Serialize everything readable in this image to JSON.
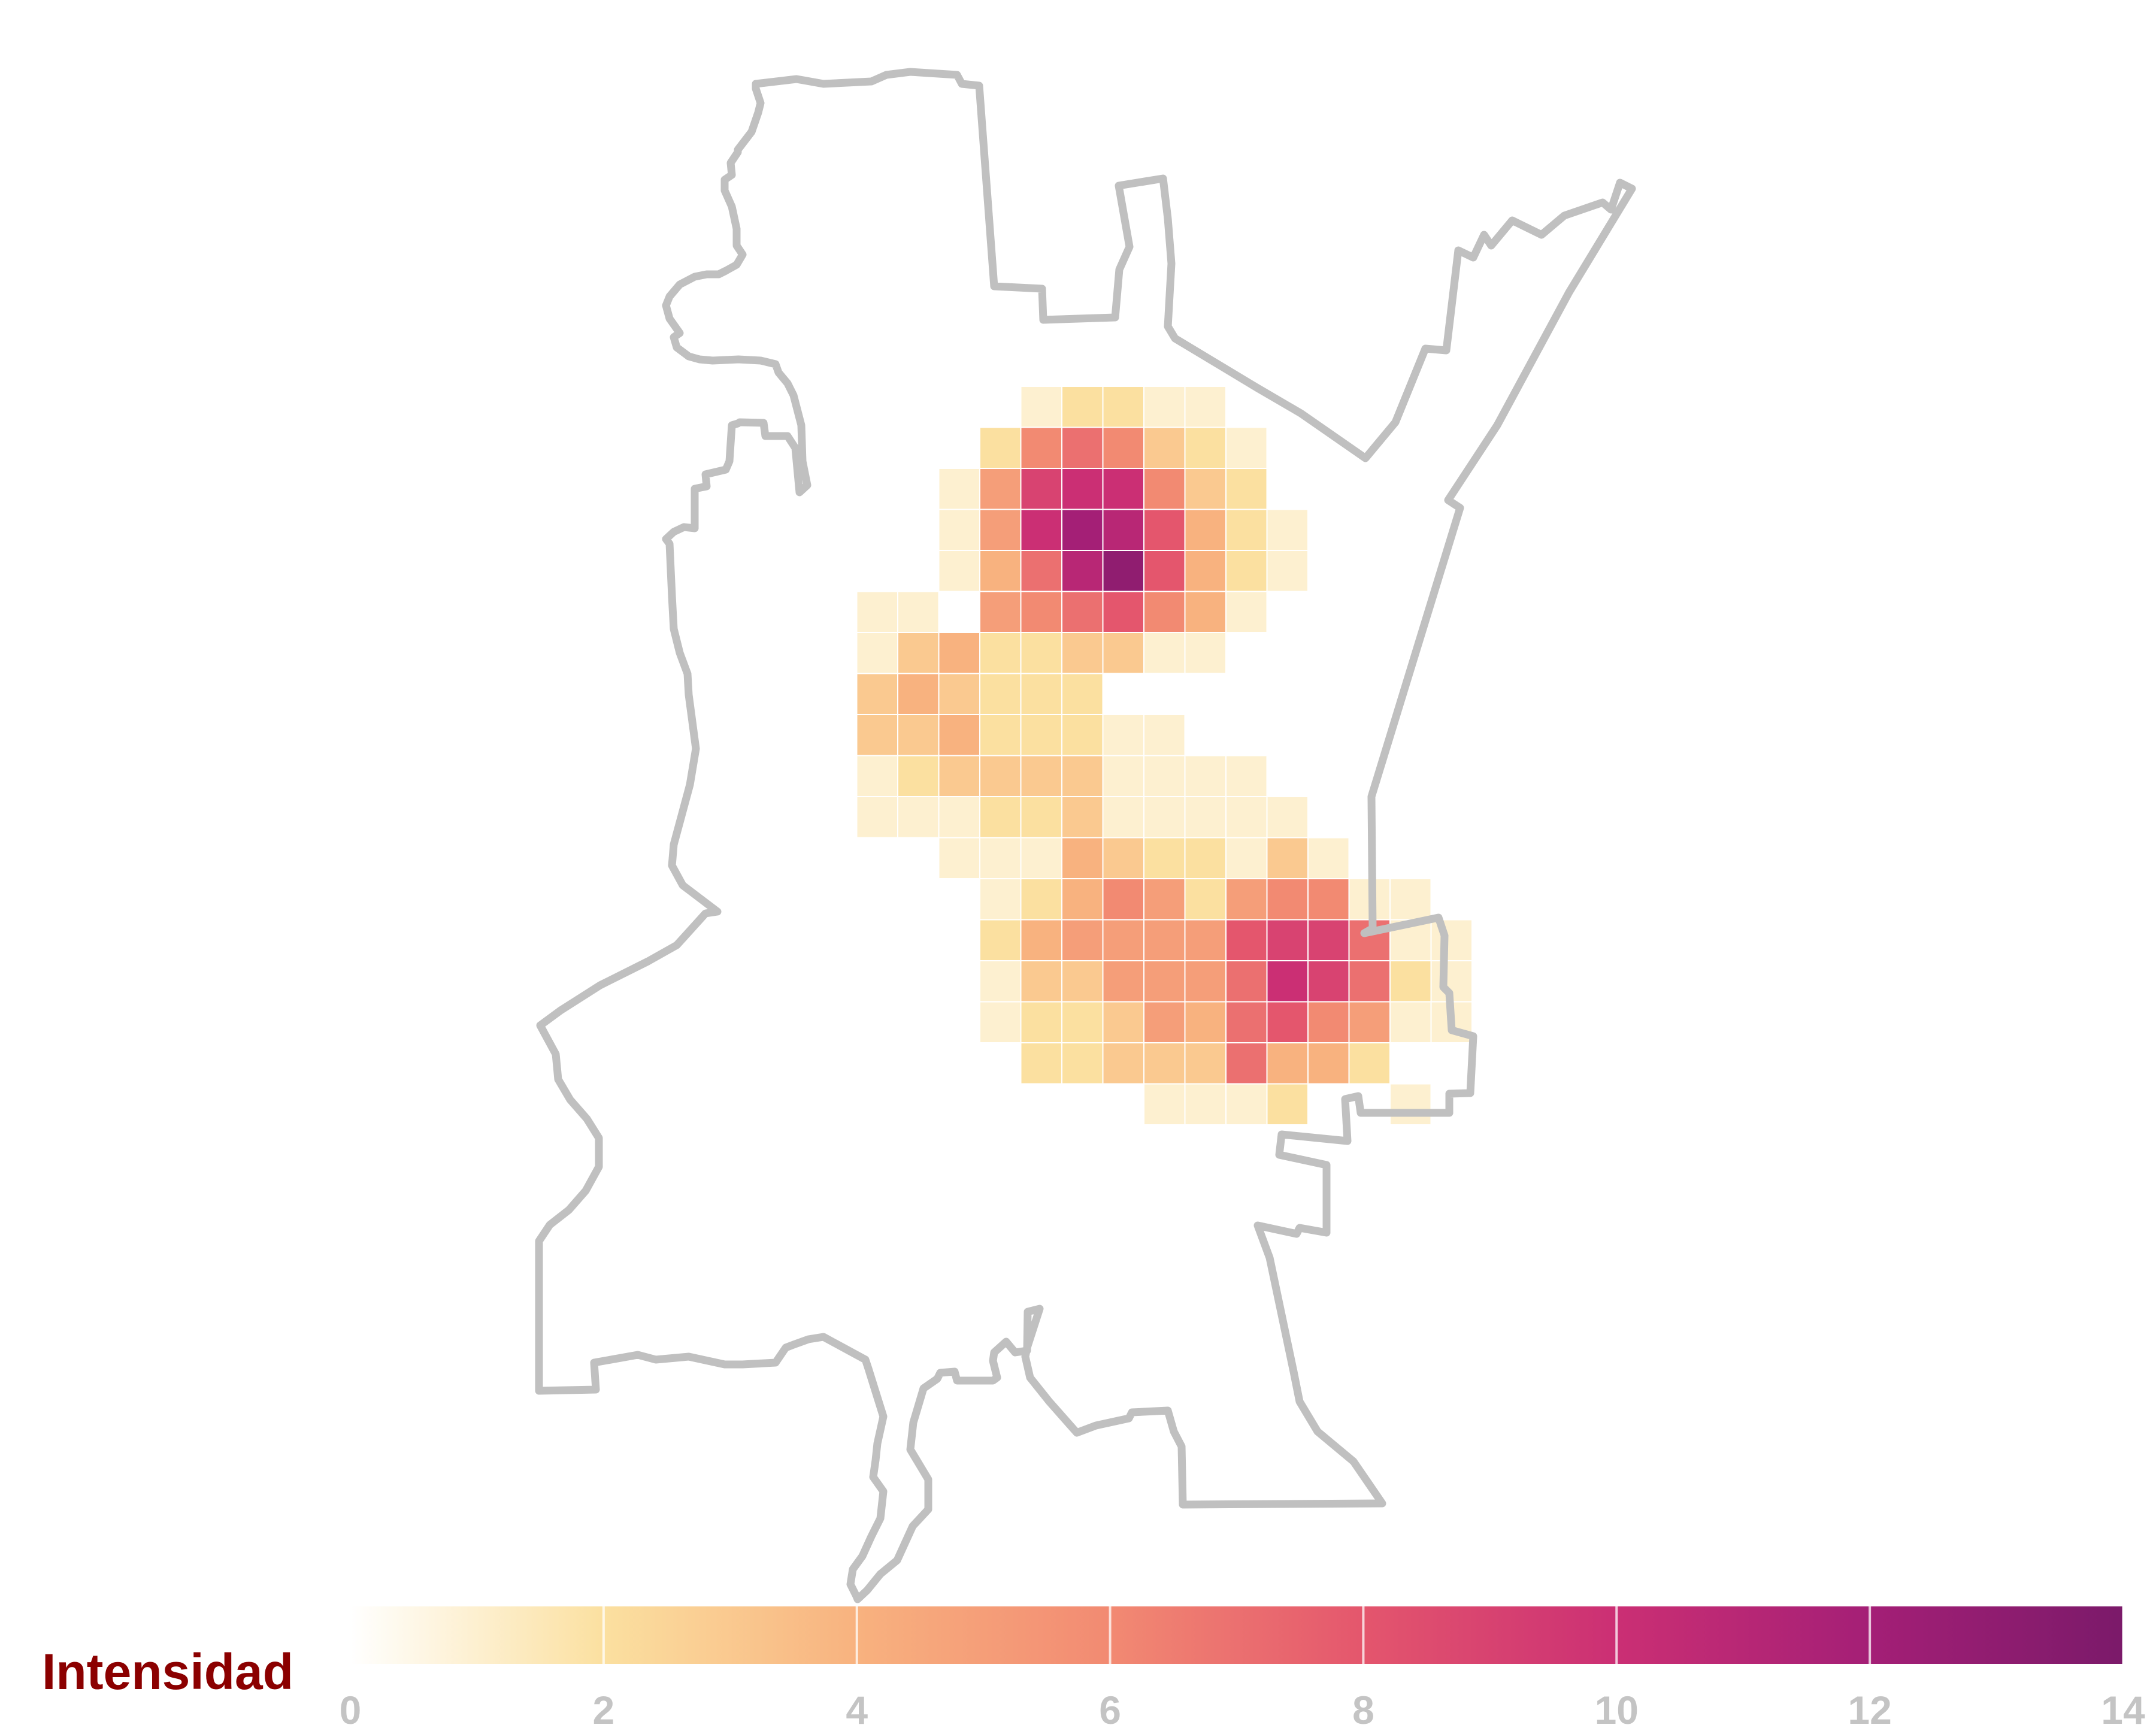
{
  "legend": {
    "title": "Intensidad",
    "title_color": "#8b0000",
    "min": 0,
    "max": 14,
    "ticks": [
      "0",
      "2",
      "4",
      "6",
      "8",
      "10",
      "12",
      "14"
    ],
    "tick_color": "#c4c4c4",
    "color_stops": [
      "#ffffff",
      "#fbe0a0",
      "#f8b27f",
      "#f28a72",
      "#e4566d",
      "#cb2f74",
      "#a41f76",
      "#7b1a6a"
    ]
  },
  "boundary_color": "#c0c0c0",
  "grid": {
    "rows_top_to_bottom": [
      [
        5,
        [
          1,
          2,
          2,
          1,
          1
        ]
      ],
      [
        4,
        [
          2,
          6,
          7,
          6,
          3,
          2,
          1
        ]
      ],
      [
        3,
        [
          1,
          5,
          9,
          10,
          10,
          6,
          3,
          2
        ]
      ],
      [
        3,
        [
          1,
          5,
          10,
          12,
          11,
          8,
          4,
          2,
          1
        ]
      ],
      [
        3,
        [
          1,
          4,
          7,
          11,
          13,
          8,
          4,
          2,
          1
        ]
      ],
      [
        1,
        [
          1,
          1,
          0,
          5,
          6,
          7,
          8,
          6,
          4,
          1
        ]
      ],
      [
        1,
        [
          1,
          3,
          4,
          2,
          2,
          3,
          3,
          1,
          1
        ]
      ],
      [
        1,
        [
          3,
          4,
          3,
          2,
          2,
          2
        ]
      ],
      [
        1,
        [
          3,
          3,
          4,
          2,
          2,
          2,
          1,
          1
        ]
      ],
      [
        1,
        [
          1,
          2,
          3,
          3,
          3,
          3,
          1,
          1,
          1,
          1
        ]
      ],
      [
        1,
        [
          1,
          1,
          1,
          2,
          2,
          3,
          1,
          1,
          1,
          1,
          1
        ]
      ],
      [
        3,
        [
          1,
          1,
          1,
          4,
          3,
          2,
          2,
          1,
          3,
          1
        ]
      ],
      [
        4,
        [
          1,
          2,
          4,
          6,
          5,
          2,
          5,
          6,
          6,
          1,
          1
        ]
      ],
      [
        4,
        [
          2,
          4,
          5,
          5,
          5,
          5,
          8,
          9,
          9,
          7,
          1,
          1
        ]
      ],
      [
        4,
        [
          1,
          3,
          3,
          5,
          5,
          5,
          7,
          10,
          9,
          7,
          2,
          1
        ]
      ],
      [
        4,
        [
          1,
          2,
          2,
          3,
          5,
          4,
          7,
          8,
          6,
          5,
          1,
          1
        ]
      ],
      [
        5,
        [
          2,
          2,
          3,
          3,
          3,
          7,
          4,
          4,
          2
        ]
      ],
      [
        8,
        [
          1,
          1,
          1,
          2,
          0,
          0,
          1
        ]
      ]
    ]
  }
}
